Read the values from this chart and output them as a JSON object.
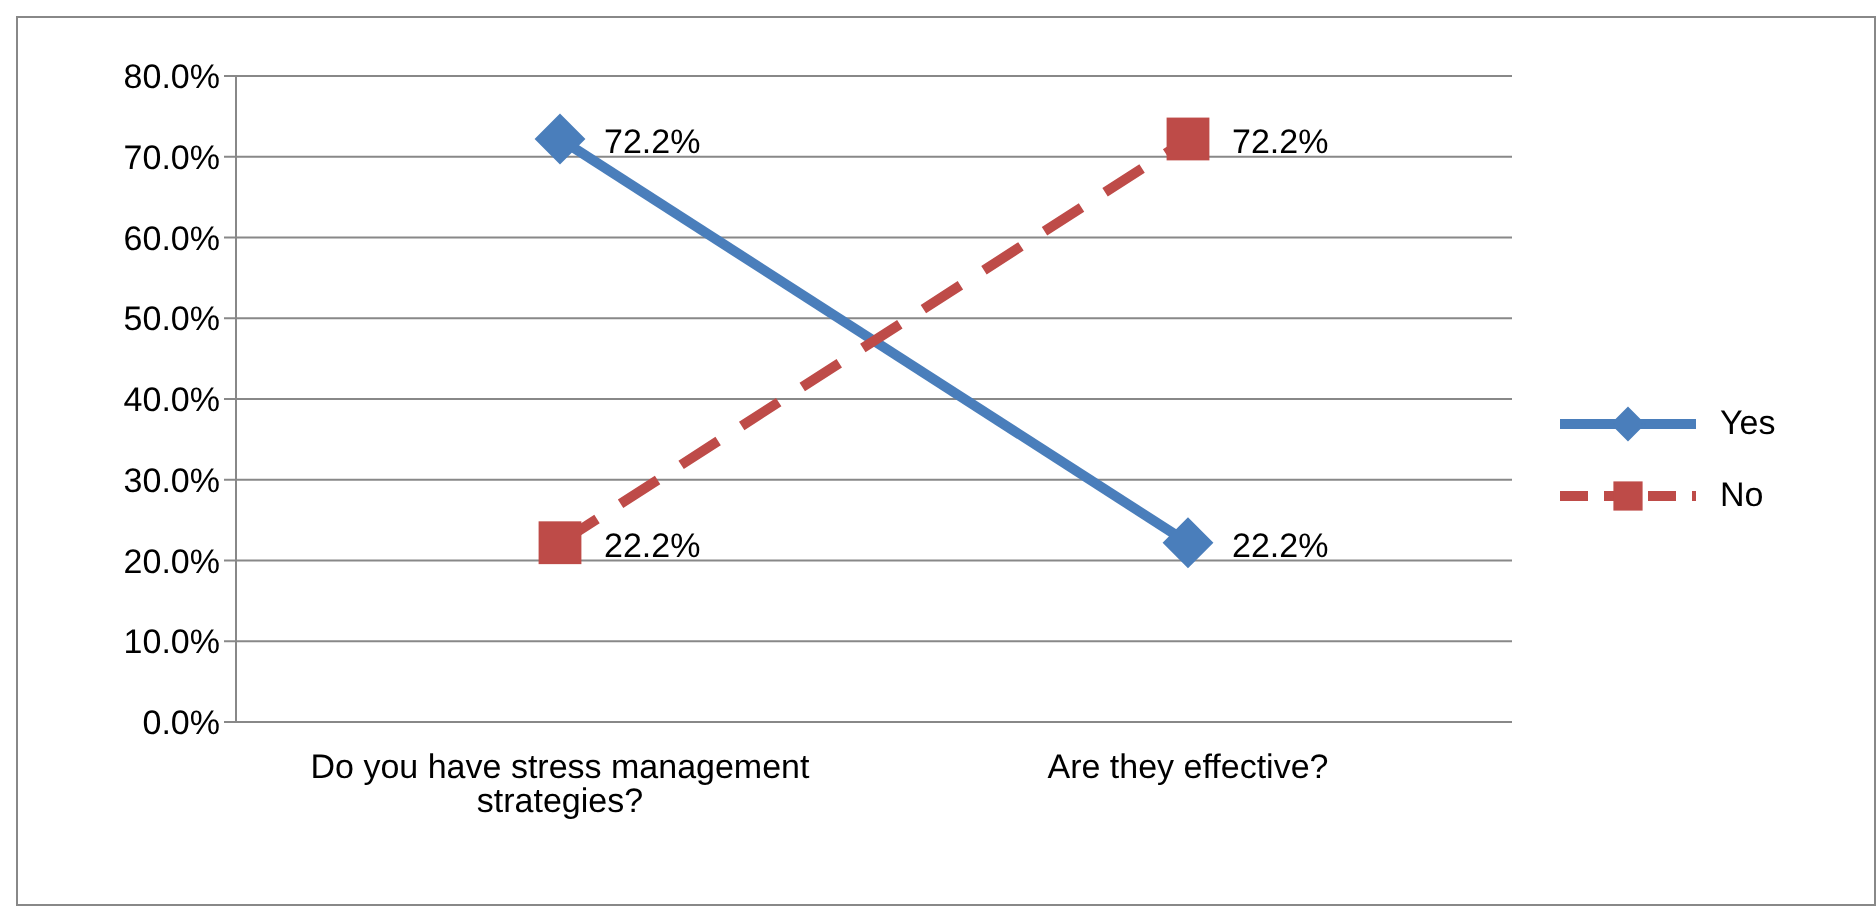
{
  "chart_data": {
    "type": "line",
    "categories": [
      "Do you have stress management strategies?",
      "Are they effective?"
    ],
    "series": [
      {
        "name": "Yes",
        "color": "#4a7ebb",
        "values": [
          72.2,
          22.2
        ],
        "value_labels": [
          "72.2%",
          "22.2%"
        ],
        "marker": "diamond",
        "line_style": "solid"
      },
      {
        "name": "No",
        "color": "#be4b48",
        "values": [
          22.2,
          72.2
        ],
        "value_labels": [
          "22.2%",
          "72.2%"
        ],
        "marker": "square",
        "line_style": "dashed"
      }
    ],
    "ylim": [
      0,
      80
    ],
    "yticks": [
      {
        "value": 0,
        "label": "0.0%"
      },
      {
        "value": 10,
        "label": "10.0%"
      },
      {
        "value": 20,
        "label": "20.0%"
      },
      {
        "value": 30,
        "label": "30.0%"
      },
      {
        "value": 40,
        "label": "40.0%"
      },
      {
        "value": 50,
        "label": "50.0%"
      },
      {
        "value": 60,
        "label": "60.0%"
      },
      {
        "value": 70,
        "label": "70.0%"
      },
      {
        "value": 80,
        "label": "80.0%"
      }
    ],
    "grid": "y",
    "legend": "right"
  }
}
